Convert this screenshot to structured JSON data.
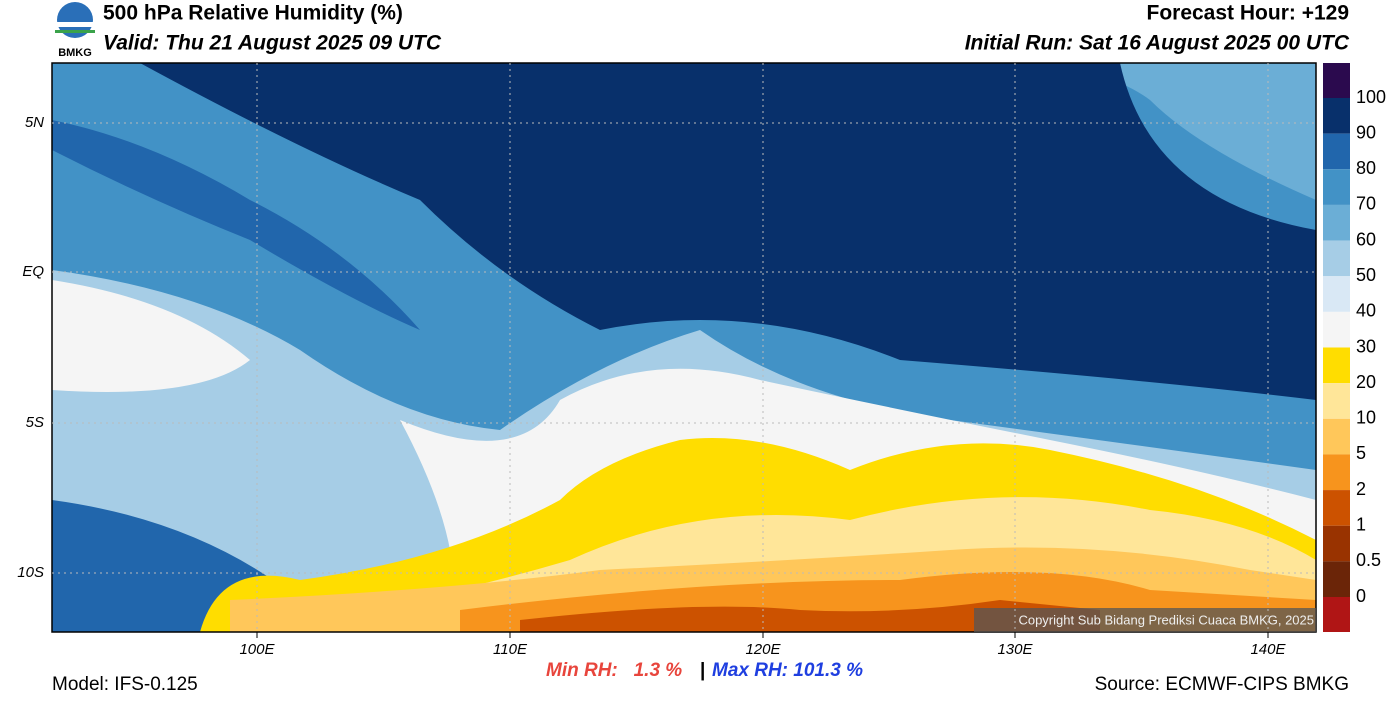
{
  "header": {
    "title": "500 hPa Relative Humidity (%)",
    "valid": "Valid: Thu 21 August 2025 09 UTC",
    "forecast_hour": "Forecast Hour: +129",
    "initial_run": "Initial Run: Sat 16 August 2025 00 UTC",
    "logo": "BMKG"
  },
  "map": {
    "lat_labels": [
      "5N",
      "EQ",
      "5S",
      "10S"
    ],
    "lon_labels": [
      "100E",
      "110E",
      "120E",
      "130E",
      "140E"
    ],
    "copyright": "Copyright Sub Bidang Prediksi Cuaca BMKG, 2025"
  },
  "legend": {
    "levels": [
      100,
      90,
      80,
      70,
      60,
      50,
      40,
      30,
      20,
      10,
      5,
      2,
      1,
      0.5,
      0
    ],
    "colors": [
      "#2b0a4e",
      "#08306b",
      "#2166ac",
      "#4292c6",
      "#6baed6",
      "#a6cde6",
      "#d9e8f5",
      "#f5f5f5",
      "#ffdd00",
      "#ffe699",
      "#ffc75a",
      "#f7941d",
      "#cc5200",
      "#993300",
      "#6b2508",
      "#b01515",
      "#e8453c"
    ]
  },
  "footer": {
    "min_rh": "Min RH:   1.3 %",
    "separator": "|",
    "max_rh": "Max RH: 101.3 %",
    "model": "Model: IFS-0.125",
    "source": "Source: ECMWF-CIPS BMKG"
  }
}
